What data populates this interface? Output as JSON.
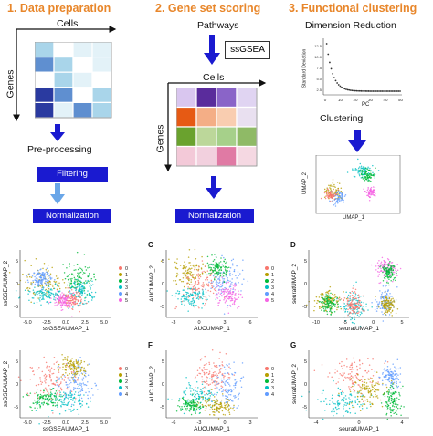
{
  "sections": {
    "prep": {
      "title": "1. Data preparation",
      "cells": "Cells",
      "genes": "Genes",
      "preprocessing": "Pre-processing",
      "filtering": "Filtering",
      "normalization": "Normalization"
    },
    "score": {
      "title": "2. Gene set scoring",
      "pathways": "Pathways",
      "ssgsea": "ssGSEA",
      "cells": "Cells",
      "genes": "Genes",
      "normalization": "Normalization"
    },
    "cluster": {
      "title": "3. Functional clustering",
      "dimred": "Dimension Reduction",
      "clustering": "Clustering",
      "pc_label": "PC",
      "sd_label": "Standard Deviation",
      "pc_ticks": [
        "0",
        "10",
        "20",
        "30",
        "40",
        "50"
      ],
      "sd_ticks": [
        "2.5",
        "5.0",
        "7.5",
        "10.0",
        "12.5"
      ],
      "umap_x": "UMAP_1",
      "umap_y": "UMAP_2"
    }
  },
  "colors": {
    "title": "#e8862a",
    "box": "#1a1ad0",
    "arrow": "#1a1ad0",
    "arrow_light": "#6aa6e8",
    "heat_prep": [
      "#2a3aa0",
      "#5f8fd0",
      "#a9d5ea",
      "#ffffff",
      "#e3f2f8"
    ],
    "heat_score": [
      "#d9c6ef",
      "#5a2c9c",
      "#8a64c8",
      "#e0d4f2",
      "#e65a14",
      "#f4ae86",
      "#f9cdb0",
      "#e9e0f0",
      "#6aa22e",
      "#bcd79a",
      "#a6d08a",
      "#8fba66",
      "#f3c9d8",
      "#f2d0de",
      "#e07aa4",
      "#f5d8e2"
    ],
    "clusters": [
      "#f8766d",
      "#b79f00",
      "#00ba38",
      "#00bfc4",
      "#619cff",
      "#f564e3"
    ]
  },
  "panels": [
    {
      "letter": "",
      "xlabel": "ssGSEAUMAP_1",
      "ylabel": "ssGSEAUMAP_2",
      "xticks": [
        "-5.0",
        "-2.5",
        "0.0",
        "2.5",
        "5.0"
      ],
      "yticks": [
        "5",
        "0",
        "-5"
      ],
      "legend": [
        "0",
        "1",
        "2",
        "3",
        "4",
        "5"
      ]
    },
    {
      "letter": "C",
      "xlabel": "AUCUMAP_1",
      "ylabel": "AUCUMAP_2",
      "xticks": [
        "-3",
        "0",
        "3",
        "6"
      ],
      "yticks": [
        "5",
        "0",
        "-5"
      ],
      "legend": [
        "0",
        "1",
        "2",
        "3",
        "4",
        "5"
      ]
    },
    {
      "letter": "D",
      "xlabel": "seuratUMAP_1",
      "ylabel": "seuratUMAP_2",
      "xticks": [
        "-10",
        "-5",
        "0",
        "5"
      ],
      "yticks": [
        "5",
        "0",
        "-5"
      ],
      "legend": []
    },
    {
      "letter": "",
      "xlabel": "ssGSEAUMAP_1",
      "ylabel": "ssGSEAUMAP_2",
      "xticks": [
        "-5.0",
        "-2.5",
        "0.0",
        "2.5",
        "5.0"
      ],
      "yticks": [
        "5",
        "0",
        "-5"
      ],
      "legend": [
        "0",
        "1",
        "2",
        "3",
        "4"
      ]
    },
    {
      "letter": "F",
      "xlabel": "AUCUMAP_1",
      "ylabel": "AUCUMAP_2",
      "xticks": [
        "-6",
        "-3",
        "0",
        "3"
      ],
      "yticks": [
        "5",
        "0",
        "-5"
      ],
      "legend": [
        "0",
        "1",
        "2",
        "3",
        "4"
      ]
    },
    {
      "letter": "G",
      "xlabel": "seuratUMAP_1",
      "ylabel": "seuratUMAP_2",
      "xticks": [
        "-4",
        "0",
        "4"
      ],
      "yticks": [
        "5",
        "0",
        "-5"
      ],
      "legend": []
    }
  ]
}
